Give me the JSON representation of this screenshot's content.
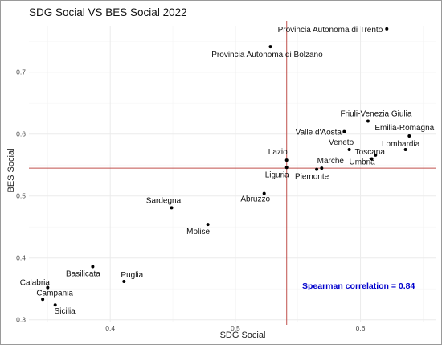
{
  "chart_data": {
    "type": "scatter",
    "title": "SDG Social VS BES Social 2022",
    "xlabel": "SDG Social",
    "ylabel": "BES Social",
    "xlim": [
      0.335,
      0.66
    ],
    "ylim": [
      0.297,
      0.775
    ],
    "xticks": [
      0.4,
      0.5,
      0.6
    ],
    "yticks": [
      0.3,
      0.4,
      0.5,
      0.6,
      0.7
    ],
    "xtick_labels": [
      "0.4",
      "0.5",
      "0.6"
    ],
    "ytick_labels": [
      "0.3",
      "0.4",
      "0.5",
      "0.6",
      "0.7"
    ],
    "reference_lines": {
      "vertical_x": 0.541,
      "horizontal_y": 0.545,
      "color": "#c0504d"
    },
    "annotation": {
      "text": "Spearman correlation = 0.84",
      "color": "#0000cc"
    },
    "grid": true,
    "points": [
      {
        "label": "Provincia Autonoma di Trento",
        "x": 0.621,
        "y": 0.77
      },
      {
        "label": "Provincia Autonoma di Bolzano",
        "x": 0.528,
        "y": 0.741
      },
      {
        "label": "Friuli-Venezia Giulia",
        "x": 0.606,
        "y": 0.621
      },
      {
        "label": "Valle d'Aosta",
        "x": 0.587,
        "y": 0.604
      },
      {
        "label": "Emilia-Romagna",
        "x": 0.639,
        "y": 0.597
      },
      {
        "label": "Lombardia",
        "x": 0.636,
        "y": 0.575
      },
      {
        "label": "Veneto",
        "x": 0.591,
        "y": 0.575
      },
      {
        "label": "Toscana",
        "x": 0.612,
        "y": 0.566
      },
      {
        "label": "Lazio",
        "x": 0.541,
        "y": 0.558
      },
      {
        "label": "Umbria",
        "x": 0.609,
        "y": 0.56
      },
      {
        "label": "Marche",
        "x": 0.569,
        "y": 0.545
      },
      {
        "label": "Liguria",
        "x": 0.541,
        "y": 0.546
      },
      {
        "label": "Piemonte",
        "x": 0.565,
        "y": 0.543
      },
      {
        "label": "Abruzzo",
        "x": 0.523,
        "y": 0.504
      },
      {
        "label": "Sardegna",
        "x": 0.449,
        "y": 0.481
      },
      {
        "label": "Molise",
        "x": 0.478,
        "y": 0.454
      },
      {
        "label": "Basilicata",
        "x": 0.386,
        "y": 0.386
      },
      {
        "label": "Puglia",
        "x": 0.411,
        "y": 0.362
      },
      {
        "label": "Calabria",
        "x": 0.35,
        "y": 0.352
      },
      {
        "label": "Campania",
        "x": 0.346,
        "y": 0.333
      },
      {
        "label": "Sicilia",
        "x": 0.356,
        "y": 0.324
      }
    ]
  }
}
